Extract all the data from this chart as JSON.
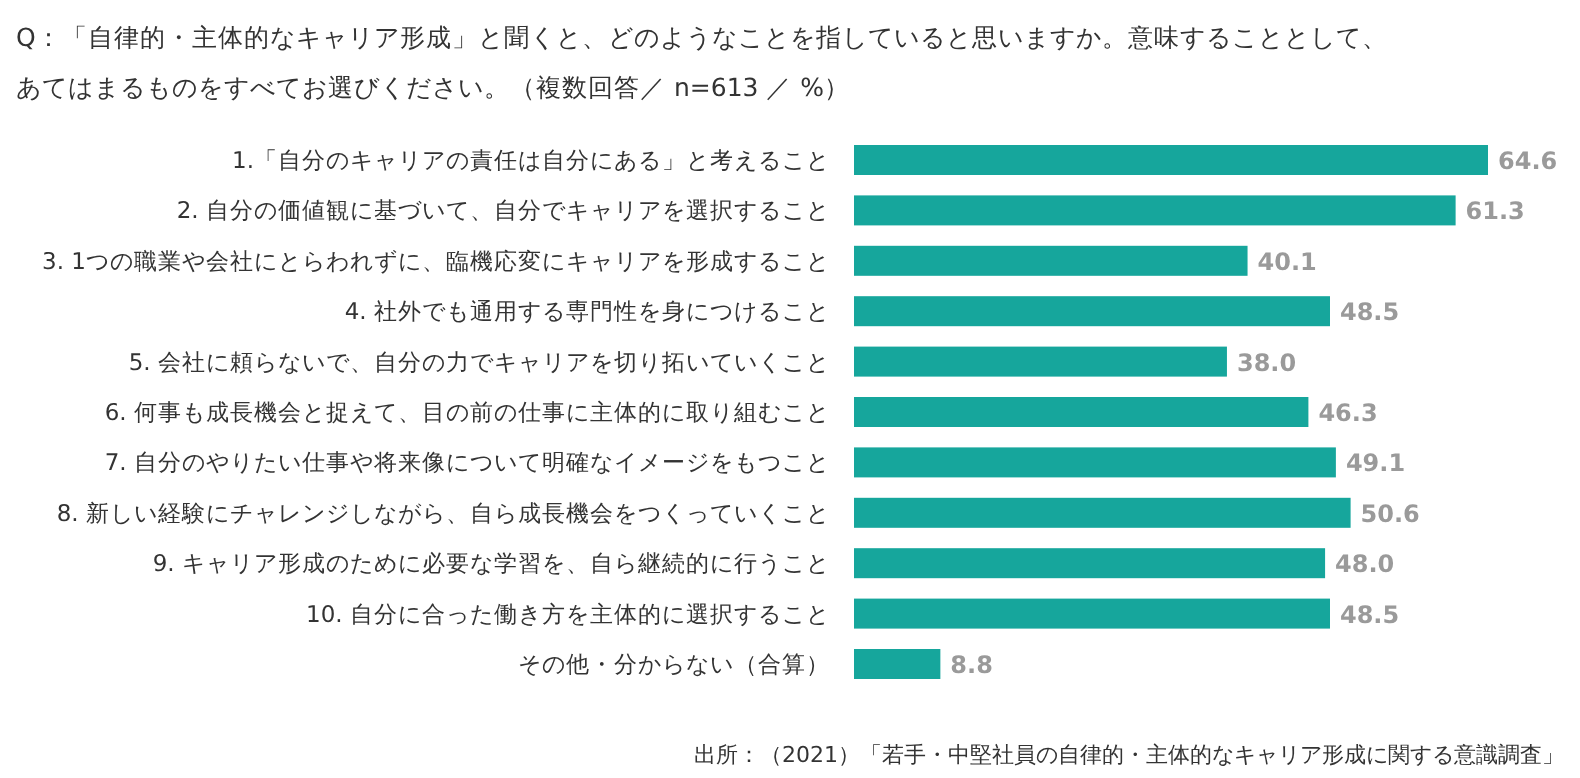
{
  "chart_data": {
    "type": "bar",
    "orientation": "horizontal",
    "title": "Q：「自律的・主体的なキャリア形成」と聞くと、どのようなことを指していると思いますか。意味することとして、あてはまるものをすべてお選びください。（複数回答／ n=613 ／ %）",
    "categories": [
      "1.「自分のキャリアの責任は自分にある」と考えること",
      "2. 自分の価値観に基づいて、自分でキャリアを選択すること",
      "3. 1つの職業や会社にとらわれずに、臨機応変にキャリアを形成すること",
      "4. 社外でも通用する専門性を身につけること",
      "5. 会社に頼らないで、自分の力でキャリアを切り拓いていくこと",
      "6. 何事も成長機会と捉えて、目の前の仕事に主体的に取り組むこと",
      "7. 自分のやりたい仕事や将来像について明確なイメージをもつこと",
      "8. 新しい経験にチャレンジしながら、自ら成長機会をつくっていくこと",
      "9. キャリア形成のために必要な学習を、自ら継続的に行うこと",
      "10. 自分に合った働き方を主体的に選択すること",
      "その他・分からない（合算）"
    ],
    "values": [
      64.6,
      61.3,
      40.1,
      48.5,
      38.0,
      46.3,
      49.1,
      50.6,
      48.0,
      48.5,
      8.8
    ],
    "color": "#16a69c",
    "value_labels": [
      "64.6",
      "61.3",
      "40.1",
      "48.5",
      "38.0",
      "46.3",
      "49.1",
      "50.6",
      "48.0",
      "48.5",
      "8.8"
    ],
    "annotations": [
      "出所：（2021）「若手・中堅社員の自律的・主体的なキャリア形成に関する意識調査」"
    ]
  }
}
